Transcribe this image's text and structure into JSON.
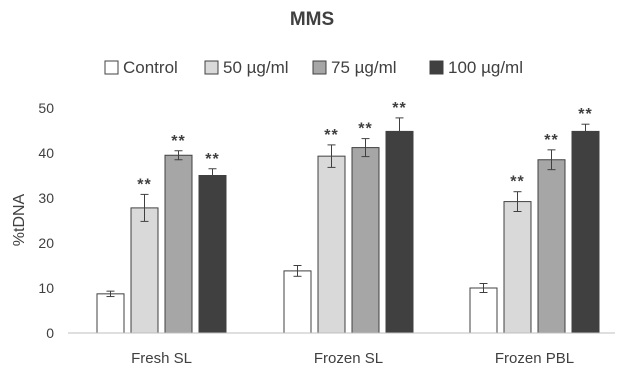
{
  "chart_data": {
    "type": "bar",
    "title": "MMS",
    "xlabel": "",
    "ylabel": "%tDNA",
    "ylim": [
      0,
      50
    ],
    "yticks": [
      0,
      10,
      20,
      30,
      40,
      50
    ],
    "grid": false,
    "legend_position": "top",
    "categories": [
      "Fresh SL",
      "Frozen SL",
      "Frozen PBL"
    ],
    "series": [
      {
        "name": "Control",
        "color": "#ffffff",
        "values": [
          8.7,
          13.8,
          10.0
        ],
        "errors": [
          0.6,
          1.2,
          1.0
        ],
        "labels": [
          "",
          "",
          ""
        ]
      },
      {
        "name": "50 µg/ml",
        "color": "#d9d9d9",
        "values": [
          27.8,
          39.3,
          29.2
        ],
        "errors": [
          3.0,
          2.5,
          2.2
        ],
        "labels": [
          "**",
          "**",
          "**"
        ]
      },
      {
        "name": "75 µg/ml",
        "color": "#a6a6a6",
        "values": [
          39.5,
          41.2,
          38.5
        ],
        "errors": [
          1.0,
          2.0,
          2.2
        ],
        "labels": [
          "**",
          "**",
          "**"
        ]
      },
      {
        "name": "100 µg/ml",
        "color": "#404040",
        "values": [
          35.0,
          44.8,
          44.8
        ],
        "errors": [
          1.5,
          3.0,
          1.6
        ],
        "labels": [
          "**",
          "**",
          "**"
        ]
      }
    ]
  }
}
